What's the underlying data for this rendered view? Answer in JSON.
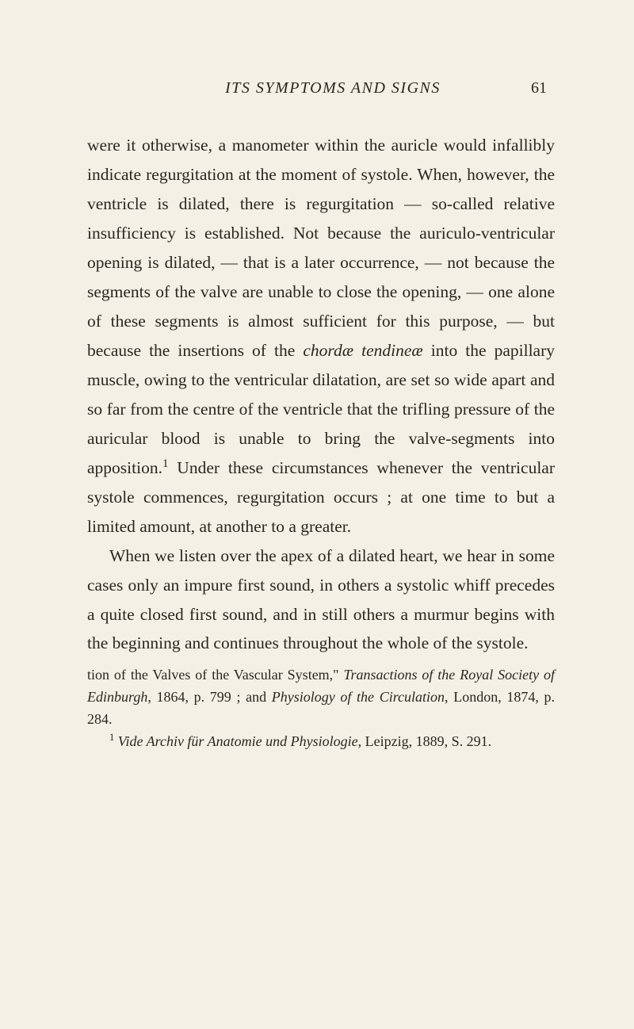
{
  "header": {
    "running_title": "ITS SYMPTOMS AND SIGNS",
    "page_number": "61"
  },
  "body": {
    "para1_a": "were it otherwise, a manometer within the auricle would infallibly indicate regurgitation at the moment of systole. When, however, the ventricle is dilated, there is regurgitation — so-called rela­tive insufficiency is established. Not because the auriculo-ventricular opening is dilated, — that is a later occurrence, — not because the segments of the valve are unable to close the opening, — one alone of these segments is almost sufficient for this purpose, — but because the insertions of the ",
    "para1_italic1": "chordæ tendineæ",
    "para1_b": " into the papillary muscle, owing to the ventricular dilatation, are set so wide apart and so far from the centre of the ventricle that the trifling pressure of the auricular blood is unable to bring the valve-segments into apposition.",
    "para1_sup": "1",
    "para1_c": " Under these circumstances whenever the ventricular systole commences, regurgitation occurs ; at one time to but a limited amount, at another to a greater.",
    "para2": "When we listen over the apex of a dilated heart, we hear in some cases only an impure first sound, in others a systolic whiff precedes a quite closed first sound, and in still others a murmur begins with the beginning and continues throughout the whole of the systole."
  },
  "footnotes": {
    "fn_cont_a": "tion of the Valves of the Vascular System,\" ",
    "fn_cont_italic1": "Transactions of the Royal Society of Edinburgh",
    "fn_cont_b": ", 1864, p. 799 ; and ",
    "fn_cont_italic2": "Physiology of the Circulation",
    "fn_cont_c": ", London, 1874, p. 284.",
    "fn1_sup": "1",
    "fn1_a": " ",
    "fn1_italic1": "Vide Archiv für Anatomie und Physiologie",
    "fn1_b": ", Leipzig, 1889, S. 291."
  },
  "colors": {
    "background": "#f5f0e6",
    "text": "#2a2620"
  }
}
